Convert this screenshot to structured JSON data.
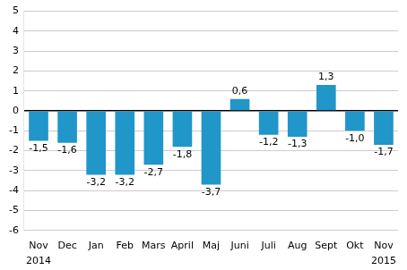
{
  "chart_data": {
    "type": "bar",
    "categories": [
      "Nov",
      "Dec",
      "Jan",
      "Feb",
      "Mars",
      "April",
      "Maj",
      "Juni",
      "Juli",
      "Aug",
      "Sept",
      "Okt",
      "Nov"
    ],
    "values": [
      -1.5,
      -1.6,
      -3.2,
      -3.2,
      -2.7,
      -1.8,
      -3.7,
      0.6,
      -1.2,
      -1.3,
      1.3,
      -1.0,
      -1.7
    ],
    "value_labels": [
      "-1,5",
      "-1,6",
      "-3,2",
      "-3,2",
      "-2,7",
      "-1,8",
      "-3,7",
      "0,6",
      "-1,2",
      "-1,3",
      "1,3",
      "-1,0",
      "-1,7"
    ],
    "color": "#2196c8",
    "ylim": [
      -6,
      5
    ],
    "yticks": [
      -6,
      -5,
      -4,
      -3,
      -2,
      -1,
      0,
      1,
      2,
      3,
      4,
      5
    ],
    "grid": true,
    "data_labels": true,
    "annotations": [
      {
        "text": "2014",
        "category_index": 0
      },
      {
        "text": "2015",
        "category_index": 12
      }
    ]
  }
}
